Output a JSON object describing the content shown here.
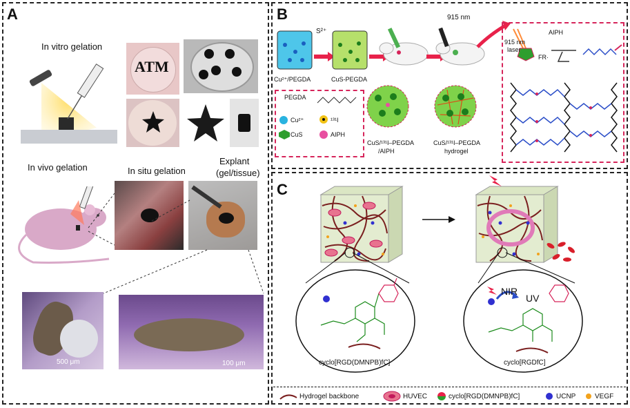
{
  "panel_a": {
    "label": "A",
    "in_vitro": "In vitro gelation",
    "in_vivo": "In vivo gelation",
    "in_situ": "In situ gelation",
    "explant": "Explant",
    "explant_sub": "(gel/tissue)",
    "photo_text": "ATM",
    "scale1": "500 μm",
    "scale2": "100 μm"
  },
  "panel_b": {
    "label": "B",
    "vial1": "Cu²⁺/PEGDA",
    "vial2": "CuS-PEGDA",
    "s2": "S²⁺",
    "wavelength": "915 nm",
    "legend_pegda": "PEGDA",
    "legend_cu": "Cu²⁺",
    "legend_cus": "CuS",
    "legend_i": "¹³¹I",
    "legend_aiph": "AIPH",
    "mouse1_l1": "CuS/¹³¹I–PEGDA",
    "mouse1_l2": "/AIPH",
    "mouse2_l1": "CuS/¹³¹I–PEGDA",
    "mouse2_l2": "hydrogel",
    "laser": "915 nm",
    "laser2": "laser",
    "aiph": "AIPH",
    "fr": "FR·"
  },
  "panel_c": {
    "label": "C",
    "nir": "NIR",
    "uv": "UV",
    "mol1": "cyclo[RGD(DMNPB)fC]",
    "mol2": "cyclo[RGDfC]",
    "legend": {
      "backbone": "Hydrogel backbone",
      "huvec": "HUVEC",
      "peptide": "cyclo[RGD(DMNPB)fC]",
      "ucnp": "UCNP",
      "vegf": "VEGF"
    }
  },
  "colors": {
    "pink": "#d6245a",
    "green": "#2e9e2e",
    "blue": "#3030d0",
    "backbone": "#7a1f1f"
  }
}
